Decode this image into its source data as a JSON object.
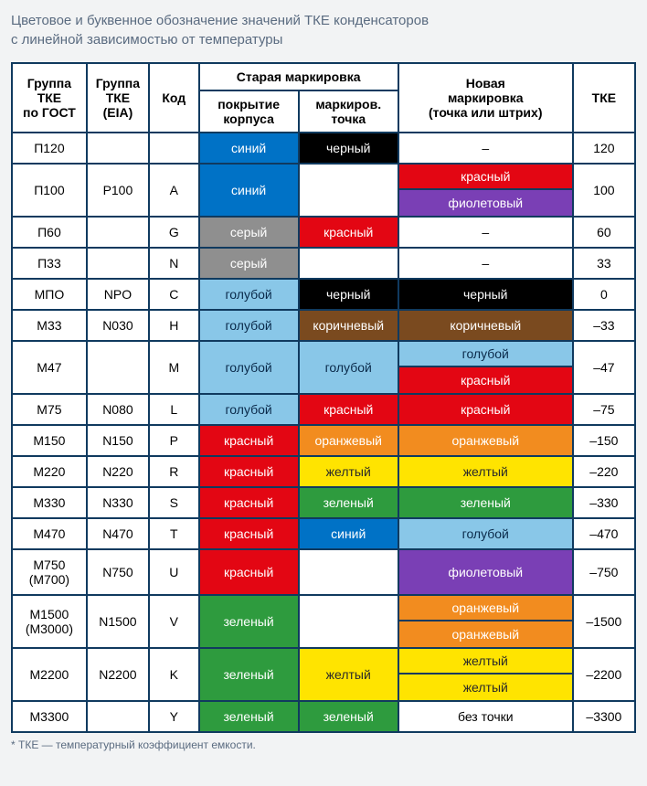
{
  "title_line1": "Цветовое и буквенное обозначение значений ТКЕ конденсаторов",
  "title_line2": "с линейной зависимостью от температуры",
  "footnote": "* ТКЕ — температурный коэффициент емкости.",
  "colors": {
    "siniy": {
      "bg": "#0072c6",
      "fg": "#ffffff"
    },
    "cherny": {
      "bg": "#000000",
      "fg": "#ffffff"
    },
    "sery": {
      "bg": "#8f8f8f",
      "fg": "#ffffff"
    },
    "krasny": {
      "bg": "#e30613",
      "fg": "#ffffff"
    },
    "goluboy": {
      "bg": "#89c7e8",
      "fg": "#0a2a4a"
    },
    "korichnevy": {
      "bg": "#7a4a1f",
      "fg": "#ffffff"
    },
    "oranzhevy": {
      "bg": "#f28c1f",
      "fg": "#ffffff"
    },
    "zhelty": {
      "bg": "#ffe400",
      "fg": "#2a2a2a"
    },
    "zeleny": {
      "bg": "#2e9b3e",
      "fg": "#ffffff"
    },
    "fioletovy": {
      "bg": "#7a3fb5",
      "fg": "#ffffff"
    },
    "white": {
      "bg": "#ffffff",
      "fg": "#000000"
    }
  },
  "header": {
    "gost": "Группа\nТКЕ\nпо ГОСТ",
    "eia": "Группа\nТКЕ\n(EIA)",
    "kod": "Код",
    "old": "Старая маркировка",
    "coat": "покрытие\nкорпуса",
    "dot": "маркиров.\nточка",
    "new": "Новая\nмаркировка\n(точка или штрих)",
    "tke": "ТКЕ"
  },
  "rows": [
    {
      "gost": "П120",
      "eia": "",
      "kod": "",
      "coat": {
        "t": "синий",
        "c": "siniy"
      },
      "dot": {
        "t": "черный",
        "c": "cherny"
      },
      "new": [
        {
          "t": "–",
          "c": "white"
        }
      ],
      "tke": "120"
    },
    {
      "gost": "П100",
      "eia": "P100",
      "kod": "A",
      "coat": {
        "t": "синий",
        "c": "siniy"
      },
      "dot": {
        "t": "",
        "c": "white"
      },
      "new": [
        {
          "t": "красный",
          "c": "krasny"
        },
        {
          "t": "фиолетовый",
          "c": "fioletovy"
        }
      ],
      "tke": "100"
    },
    {
      "gost": "П60",
      "eia": "",
      "kod": "G",
      "coat": {
        "t": "серый",
        "c": "sery"
      },
      "dot": {
        "t": "красный",
        "c": "krasny"
      },
      "new": [
        {
          "t": "–",
          "c": "white"
        }
      ],
      "tke": "60"
    },
    {
      "gost": "П33",
      "eia": "",
      "kod": "N",
      "coat": {
        "t": "серый",
        "c": "sery"
      },
      "dot": {
        "t": "",
        "c": "white"
      },
      "new": [
        {
          "t": "–",
          "c": "white"
        }
      ],
      "tke": "33"
    },
    {
      "gost": "МПО",
      "eia": "NPO",
      "kod": "C",
      "coat": {
        "t": "голубой",
        "c": "goluboy"
      },
      "dot": {
        "t": "черный",
        "c": "cherny"
      },
      "new": [
        {
          "t": "черный",
          "c": "cherny"
        }
      ],
      "tke": "0"
    },
    {
      "gost": "М33",
      "eia": "N030",
      "kod": "H",
      "coat": {
        "t": "голубой",
        "c": "goluboy"
      },
      "dot": {
        "t": "коричневый",
        "c": "korichnevy"
      },
      "new": [
        {
          "t": "коричневый",
          "c": "korichnevy"
        }
      ],
      "tke": "–33"
    },
    {
      "gost": "М47",
      "eia": "",
      "kod": "M",
      "coat": {
        "t": "голубой",
        "c": "goluboy"
      },
      "dot": {
        "t": "голубой",
        "c": "goluboy"
      },
      "new": [
        {
          "t": "голубой",
          "c": "goluboy"
        },
        {
          "t": "красный",
          "c": "krasny"
        }
      ],
      "tke": "–47"
    },
    {
      "gost": "М75",
      "eia": "N080",
      "kod": "L",
      "coat": {
        "t": "голубой",
        "c": "goluboy"
      },
      "dot": {
        "t": "красный",
        "c": "krasny"
      },
      "new": [
        {
          "t": "красный",
          "c": "krasny"
        }
      ],
      "tke": "–75"
    },
    {
      "gost": "М150",
      "eia": "N150",
      "kod": "P",
      "coat": {
        "t": "красный",
        "c": "krasny"
      },
      "dot": {
        "t": "оранжевый",
        "c": "oranzhevy"
      },
      "new": [
        {
          "t": "оранжевый",
          "c": "oranzhevy"
        }
      ],
      "tke": "–150"
    },
    {
      "gost": "М220",
      "eia": "N220",
      "kod": "R",
      "coat": {
        "t": "красный",
        "c": "krasny"
      },
      "dot": {
        "t": "желтый",
        "c": "zhelty"
      },
      "new": [
        {
          "t": "желтый",
          "c": "zhelty"
        }
      ],
      "tke": "–220"
    },
    {
      "gost": "М330",
      "eia": "N330",
      "kod": "S",
      "coat": {
        "t": "красный",
        "c": "krasny"
      },
      "dot": {
        "t": "зеленый",
        "c": "zeleny"
      },
      "new": [
        {
          "t": "зеленый",
          "c": "zeleny"
        }
      ],
      "tke": "–330"
    },
    {
      "gost": "М470",
      "eia": "N470",
      "kod": "T",
      "coat": {
        "t": "красный",
        "c": "krasny"
      },
      "dot": {
        "t": "синий",
        "c": "siniy"
      },
      "new": [
        {
          "t": "голубой",
          "c": "goluboy"
        }
      ],
      "tke": "–470"
    },
    {
      "gost": "М750\n(М700)",
      "eia": "N750",
      "kod": "U",
      "coat": {
        "t": "красный",
        "c": "krasny"
      },
      "dot": {
        "t": "",
        "c": "white"
      },
      "new": [
        {
          "t": "фиолетовый",
          "c": "fioletovy"
        }
      ],
      "tke": "–750"
    },
    {
      "gost": "М1500\n(М3000)",
      "eia": "N1500",
      "kod": "V",
      "coat": {
        "t": "зеленый",
        "c": "zeleny"
      },
      "dot": {
        "t": "",
        "c": "white"
      },
      "new": [
        {
          "t": "оранжевый",
          "c": "oranzhevy"
        },
        {
          "t": "оранжевый",
          "c": "oranzhevy"
        }
      ],
      "tke": "–1500"
    },
    {
      "gost": "М2200",
      "eia": "N2200",
      "kod": "K",
      "coat": {
        "t": "зеленый",
        "c": "zeleny"
      },
      "dot": {
        "t": "желтый",
        "c": "zhelty"
      },
      "new": [
        {
          "t": "желтый",
          "c": "zhelty"
        },
        {
          "t": "желтый",
          "c": "zhelty"
        }
      ],
      "tke": "–2200"
    },
    {
      "gost": "М3300",
      "eia": "",
      "kod": "Y",
      "coat": {
        "t": "зеленый",
        "c": "zeleny"
      },
      "dot": {
        "t": "зеленый",
        "c": "zeleny"
      },
      "new": [
        {
          "t": "без точки",
          "c": "white"
        }
      ],
      "tke": "–3300"
    }
  ]
}
